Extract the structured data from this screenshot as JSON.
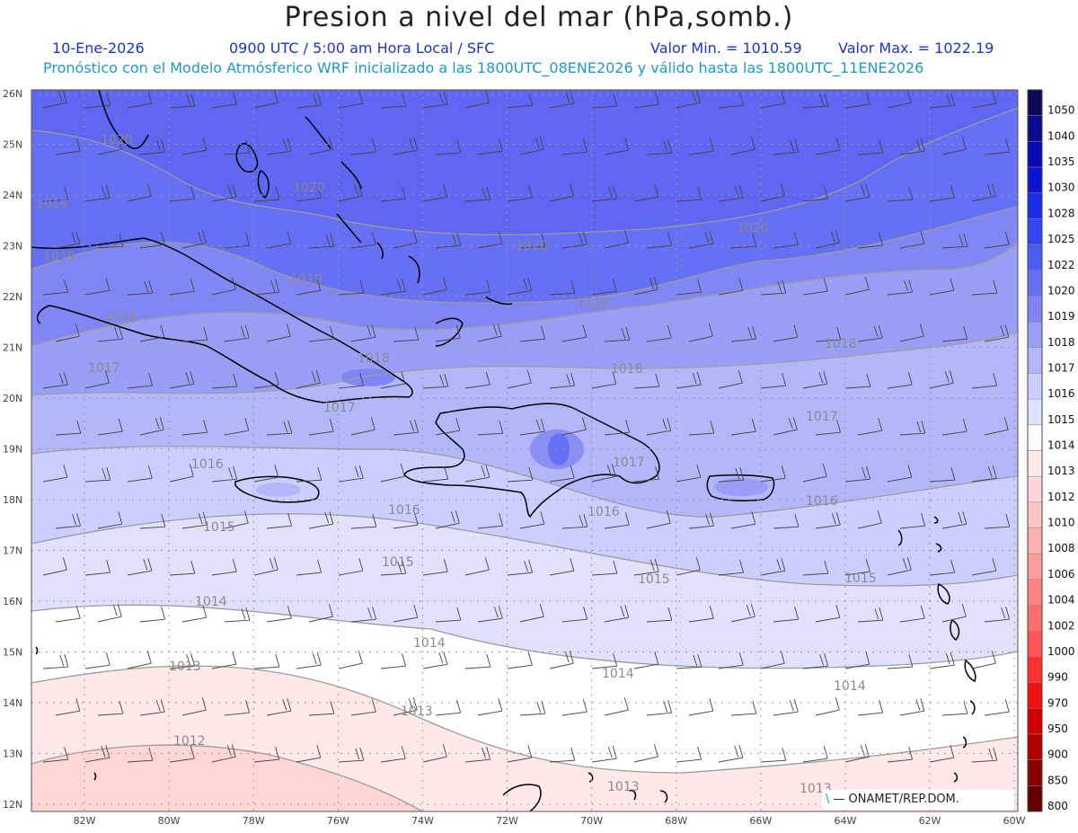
{
  "header": {
    "title": "Presion a nivel del mar (hPa,somb.)",
    "date": "10-Ene-2026",
    "time_info": "0900 UTC / 5:00 am Hora Local / SFC",
    "min_label": "Valor Min. = 1010.59",
    "max_label": "Valor Max. = 1022.19",
    "forecast_note": "Pronóstico con el Modelo Atmósferico WRF inicializado a las 1800UTC_08ENE2026 y válido hasta las  1800UTC_11ENE2026"
  },
  "credit": "— ONAMET/REP.DOM.",
  "axes": {
    "lon_labels": [
      "82W",
      "80W",
      "78W",
      "76W",
      "74W",
      "72W",
      "70W",
      "68W",
      "66W",
      "64W",
      "62W",
      "60W"
    ],
    "lat_labels": [
      "26N",
      "25N",
      "24N",
      "23N",
      "22N",
      "21N",
      "20N",
      "19N",
      "18N",
      "17N",
      "16N",
      "15N",
      "14N",
      "13N",
      "12N"
    ]
  },
  "colorbar": {
    "labels": [
      "1050",
      "1040",
      "1035",
      "1030",
      "1028",
      "1025",
      "1022",
      "1020",
      "1019",
      "1018",
      "1017",
      "1016",
      "1015",
      "1014",
      "1013",
      "1012",
      "1010",
      "1008",
      "1006",
      "1004",
      "1002",
      "1000",
      "990",
      "970",
      "950",
      "900",
      "850",
      "800"
    ],
    "colors": [
      "#0a0a55",
      "#0a0a8c",
      "#0a0ab4",
      "#0a14cc",
      "#1a2ee6",
      "#3346f0",
      "#4d5cf2",
      "#6670f4",
      "#8087f5",
      "#999ff7",
      "#b3b7f9",
      "#ccceff",
      "#e0e1fc",
      "#ffffff",
      "#ffe8e8",
      "#ffd6d6",
      "#ffc4c4",
      "#ffb0b0",
      "#ff9c9c",
      "#ff8585",
      "#ff6e6e",
      "#ff5555",
      "#ff3030",
      "#f01010",
      "#d40000",
      "#b00000",
      "#8c0000",
      "#640000"
    ]
  },
  "isobar_labels": [
    "1020",
    "1020",
    "1019",
    "1019",
    "1018",
    "1017",
    "1020",
    "1020",
    "1018",
    "1018",
    "1017",
    "1019",
    "1018",
    "1018",
    "1017",
    "1016",
    "1015",
    "1016",
    "1017",
    "1016",
    "1015",
    "1014",
    "1014",
    "1013",
    "1014",
    "1013",
    "1015",
    "1016",
    "1015",
    "1014",
    "1013",
    "1012",
    "1013"
  ]
}
